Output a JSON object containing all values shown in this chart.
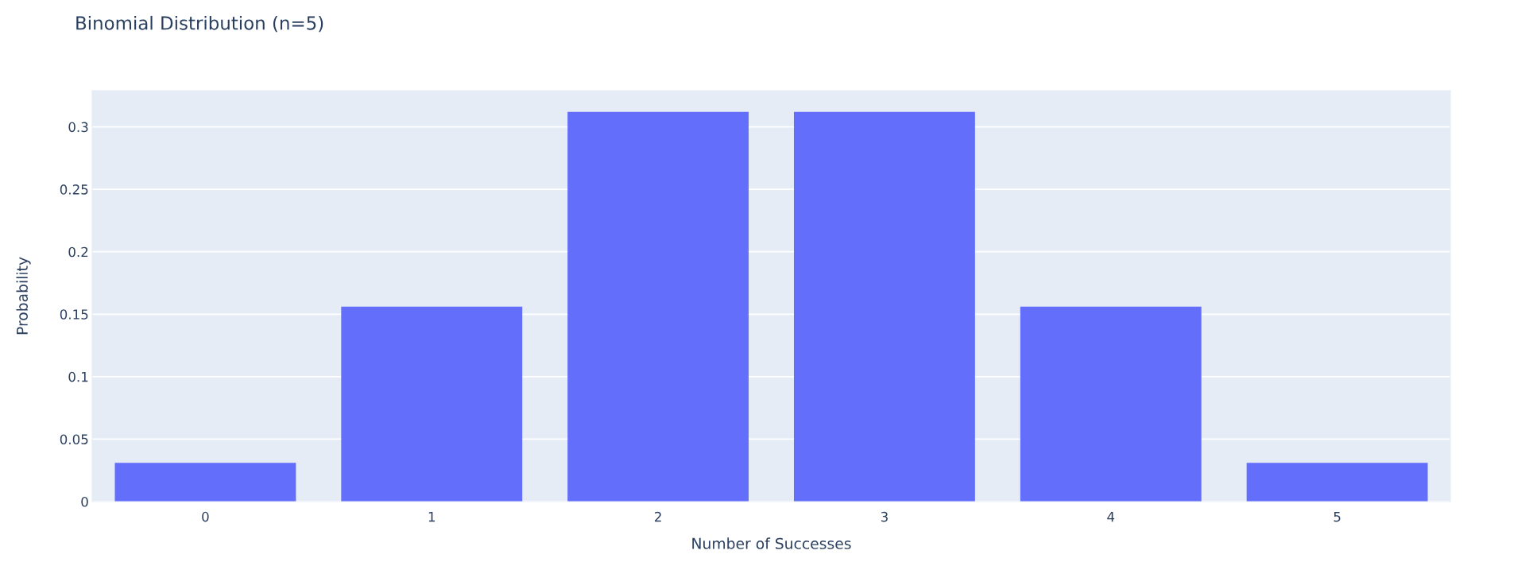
{
  "chart_data": {
    "type": "bar",
    "title": "Binomial Distribution (n=5)",
    "xlabel": "Number of Successes",
    "ylabel": "Probability",
    "categories": [
      "0",
      "1",
      "2",
      "3",
      "4",
      "5"
    ],
    "values": [
      0.031,
      0.156,
      0.312,
      0.312,
      0.156,
      0.031
    ],
    "color": "#636efa",
    "ylim": [
      0,
      0.329
    ],
    "yticks": [
      0,
      0.05,
      0.1,
      0.15,
      0.2,
      0.25,
      0.3
    ],
    "grid": "y"
  }
}
